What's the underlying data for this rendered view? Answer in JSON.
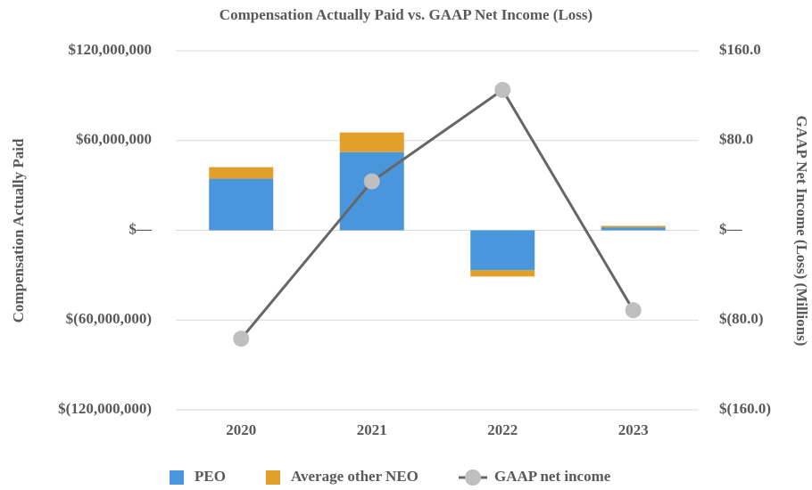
{
  "chart_data": {
    "type": "bar-line",
    "title": "Compensation Actually Paid vs. GAAP Net Income (Loss)",
    "y_label": "Compensation Actually Paid",
    "y2_label": "GAAP Net Income (Loss) (Millions)",
    "categories": [
      "2020",
      "2021",
      "2022",
      "2023"
    ],
    "series": [
      {
        "name": "PEO",
        "type": "bar",
        "color": "#4a96dd",
        "values": [
          34500000,
          52300000,
          -26700000,
          2000000
        ]
      },
      {
        "name": "Average other NEO",
        "type": "bar",
        "color": "#e2a02b",
        "values": [
          7700000,
          13100000,
          -4200000,
          1000000
        ]
      },
      {
        "name": "GAAP net income",
        "type": "line",
        "axis": "y2",
        "color": "#666666",
        "marker_color": "#bfbfbf",
        "values": [
          -96.6,
          43.6,
          125.1,
          -71.3
        ]
      }
    ],
    "ylim": [
      -120000000,
      120000000
    ],
    "yticks": [
      {
        "value": -120000000,
        "label": "$(120,000,000)"
      },
      {
        "value": -60000000,
        "label": "$(60,000,000)"
      },
      {
        "value": 0,
        "label": "$—"
      },
      {
        "value": 60000000,
        "label": "$60,000,000"
      },
      {
        "value": 120000000,
        "label": "$120,000,000"
      }
    ],
    "y2lim": [
      -160,
      160
    ],
    "y2ticks": [
      {
        "value": -160,
        "label": "$(160.0)"
      },
      {
        "value": -80,
        "label": "$(80.0)"
      },
      {
        "value": 0,
        "label": "$—"
      },
      {
        "value": 80,
        "label": "$80.0"
      },
      {
        "value": 160,
        "label": "$160.0"
      }
    ],
    "grid": true,
    "legend": "bottom"
  }
}
